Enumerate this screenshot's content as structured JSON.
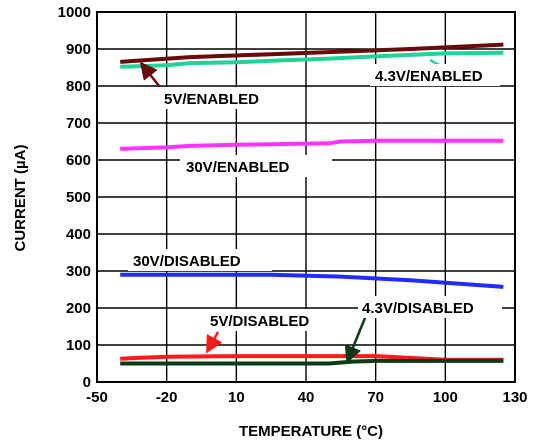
{
  "chart_data": {
    "type": "line",
    "title": "",
    "xlabel": "TEMPERATURE (°C)",
    "ylabel": "CURRENT (µA)",
    "xlim": [
      -50,
      130
    ],
    "ylim": [
      0,
      1000
    ],
    "xticks": [
      -50,
      -20,
      10,
      40,
      70,
      100,
      130
    ],
    "yticks": [
      0,
      100,
      200,
      300,
      400,
      500,
      600,
      700,
      800,
      900,
      1000
    ],
    "grid": true,
    "series": [
      {
        "name": "5V/ENABLED",
        "color": "#6b0a0a",
        "x": [
          -40,
          -10,
          25,
          85,
          125
        ],
        "y": [
          865,
          878,
          886,
          900,
          912
        ]
      },
      {
        "name": "4.3V/ENABLED",
        "color": "#1fd39a",
        "x": [
          -40,
          -20,
          -10,
          10,
          25,
          50,
          70,
          100,
          125
        ],
        "y": [
          852,
          856,
          862,
          864,
          868,
          874,
          880,
          888,
          890
        ]
      },
      {
        "name": "30V/ENABLED",
        "color": "#ff33ff",
        "x": [
          -40,
          -20,
          -10,
          10,
          50,
          55,
          70,
          125
        ],
        "y": [
          630,
          634,
          638,
          641,
          645,
          650,
          652,
          652
        ]
      },
      {
        "name": "30V/DISABLED",
        "color": "#1f2bff",
        "x": [
          -40,
          -20,
          25,
          55,
          85,
          125
        ],
        "y": [
          290,
          290,
          290,
          285,
          275,
          257
        ]
      },
      {
        "name": "5V/DISABLED",
        "color": "#ff1a1a",
        "x": [
          -40,
          -20,
          10,
          40,
          55,
          70,
          100,
          125
        ],
        "y": [
          63,
          68,
          70,
          70,
          70,
          70,
          60,
          60
        ]
      },
      {
        "name": "4.3V/DISABLED",
        "color": "#0b3a16",
        "x": [
          -40,
          10,
          50,
          60,
          70,
          125
        ],
        "y": [
          50,
          50,
          50,
          55,
          57,
          57
        ]
      }
    ],
    "annotations": [
      "5V/ENABLED",
      "4.3V/ENABLED",
      "30V/ENABLED",
      "30V/DISABLED",
      "5V/DISABLED",
      "4.3V/DISABLED"
    ]
  }
}
